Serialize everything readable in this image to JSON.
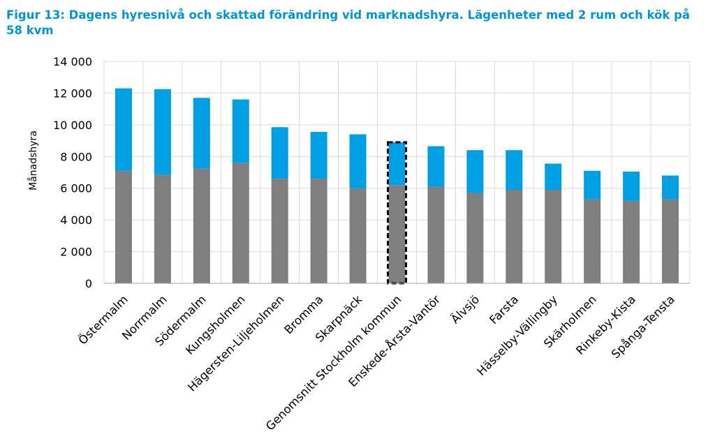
{
  "title": "Figur 13: Dagens hyresnivå och skattad förändring vid marknadshyra. Lägenheter med 2 rum och kök på 58 kvm",
  "chart_data": {
    "type": "bar",
    "stacked": true,
    "ylabel": "Månadshyra",
    "xlabel": "",
    "ylim": [
      0,
      14000
    ],
    "yticks": [
      0,
      2000,
      4000,
      6000,
      8000,
      10000,
      12000,
      14000
    ],
    "ytick_labels": [
      "0",
      "2 000",
      "4 000",
      "6 000",
      "8 000",
      "10 000",
      "12 000",
      "14 000"
    ],
    "grid": true,
    "highlighted_category": "Genomsnitt Stockholm kommun",
    "categories": [
      "Östermalm",
      "Norrmalm",
      "Södermalm",
      "Kungsholmen",
      "Hägersten-Liljeholmen",
      "Bromma",
      "Skarpnäck",
      "Genomsnitt Stockholm kommun",
      "Enskede-Årsta-Vantör",
      "Älvsjö",
      "Farsta",
      "Hässelby-Vällingby",
      "Skärholmen",
      "Rinkeby-Kista",
      "Spånga-Tensta"
    ],
    "series": [
      {
        "name": "Dagens hyresnivå",
        "color": "#7f7f7f",
        "values": [
          7100,
          6850,
          7250,
          7600,
          6600,
          6600,
          6000,
          6200,
          6100,
          5700,
          5900,
          5900,
          5300,
          5200,
          5300
        ]
      },
      {
        "name": "Skattad förändring vid marknadshyra",
        "color": "#009fe3",
        "values": [
          5200,
          5400,
          4450,
          4000,
          3250,
          2950,
          3400,
          2700,
          2550,
          2700,
          2500,
          1650,
          1800,
          1850,
          1500
        ]
      }
    ]
  }
}
